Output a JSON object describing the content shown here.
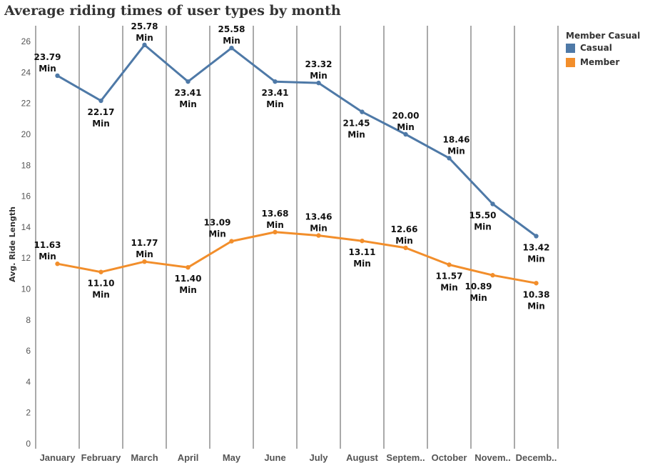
{
  "chart_data": {
    "type": "line",
    "title": "Average riding times of user types by month",
    "ylabel": "Avg. Ride Length",
    "xlabel": "",
    "ylim": [
      0,
      27
    ],
    "yticks": [
      0,
      2,
      4,
      6,
      8,
      10,
      12,
      14,
      16,
      18,
      20,
      22,
      24,
      26
    ],
    "categories": [
      "January",
      "February",
      "March",
      "April",
      "May",
      "June",
      "July",
      "August",
      "Septem..",
      "October",
      "Novem..",
      "Decemb.."
    ],
    "label_suffix": "Min",
    "legend": {
      "title": "Member Casual",
      "position": "top-right"
    },
    "series": [
      {
        "name": "Casual",
        "color": "#4e79a7",
        "values": [
          23.79,
          22.17,
          25.78,
          23.41,
          25.58,
          23.41,
          23.32,
          21.45,
          20.0,
          18.46,
          15.5,
          13.42
        ]
      },
      {
        "name": "Member",
        "color": "#f28e2b",
        "values": [
          11.63,
          11.1,
          11.77,
          11.4,
          13.09,
          13.68,
          13.46,
          13.11,
          12.66,
          11.57,
          10.89,
          10.38
        ]
      }
    ]
  }
}
